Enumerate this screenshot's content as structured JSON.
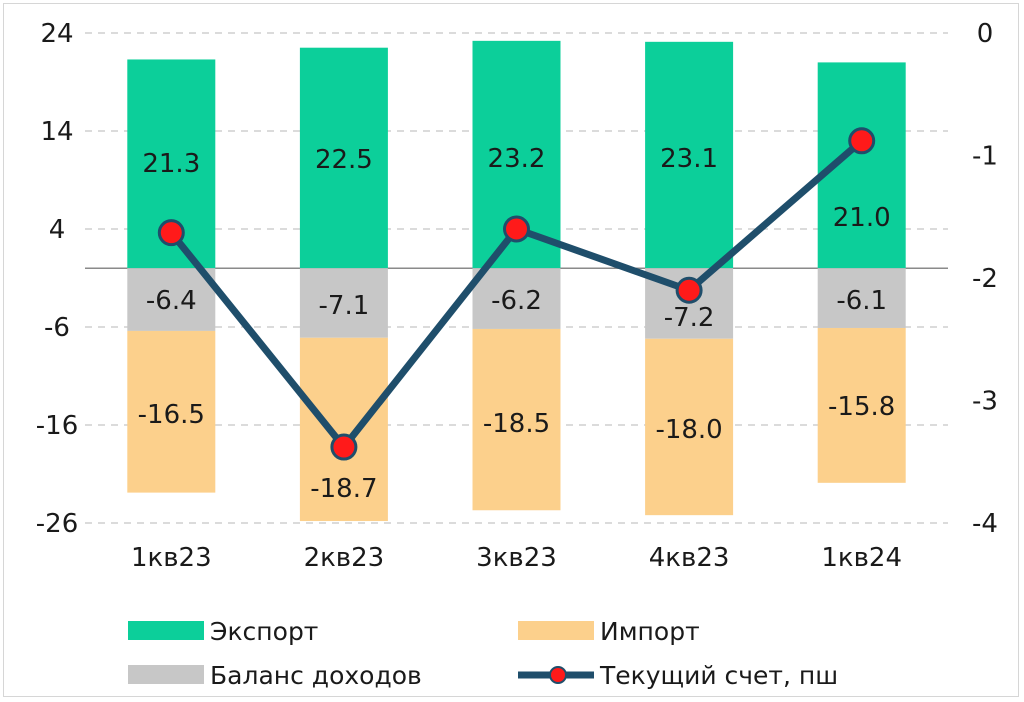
{
  "chart_data": {
    "type": "bar",
    "categories": [
      "1кв23",
      "2кв23",
      "3кв23",
      "4кв23",
      "1кв24"
    ],
    "series": [
      {
        "name": "Экспорт",
        "kind": "bar",
        "axis": "left",
        "color": "#0ccf9a",
        "values": [
          21.3,
          22.5,
          23.2,
          23.1,
          21.0
        ],
        "labels": [
          "21.3",
          "22.5",
          "23.2",
          "23.1",
          "21.0"
        ]
      },
      {
        "name": "Баланс доходов",
        "kind": "bar",
        "axis": "left",
        "color": "#c7c7c7",
        "values": [
          -6.4,
          -7.1,
          -6.2,
          -7.2,
          -6.1
        ],
        "labels": [
          "-6.4",
          "-7.1",
          "-6.2",
          "-7.2",
          "-6.1"
        ]
      },
      {
        "name": "Импорт",
        "kind": "bar",
        "axis": "left",
        "color": "#fcd08c",
        "values": [
          -16.5,
          -18.7,
          -18.5,
          -18.0,
          -15.8
        ],
        "labels": [
          "-16.5",
          "-18.7",
          "-18.5",
          "-18.0",
          "-15.8"
        ]
      },
      {
        "name": "Текущий счет, пш",
        "kind": "line",
        "axis": "right",
        "color": "#1f4e6b",
        "marker_color": "#ff1a1a",
        "values": [
          -1.63,
          -3.38,
          -1.6,
          -2.1,
          -0.88
        ]
      }
    ],
    "y_left": {
      "range": [
        -26,
        24
      ],
      "ticks": [
        "24",
        "14",
        "4",
        "-6",
        "-16",
        "-26"
      ]
    },
    "y_right": {
      "range": [
        -4,
        0
      ],
      "ticks": [
        "0",
        "-1",
        "-2",
        "-3",
        "-4"
      ]
    },
    "grid": "horizontal-dashed",
    "legend_placement": "bottom",
    "legend": [
      {
        "label": "Экспорт",
        "kind": "bar",
        "color": "#0ccf9a"
      },
      {
        "label": "Импорт",
        "kind": "bar",
        "color": "#fcd08c"
      },
      {
        "label": "Баланс доходов",
        "kind": "bar",
        "color": "#c7c7c7"
      },
      {
        "label": "Текущий счет, пш",
        "kind": "line",
        "color": "#1f4e6b",
        "marker_color": "#ff1a1a"
      }
    ]
  }
}
